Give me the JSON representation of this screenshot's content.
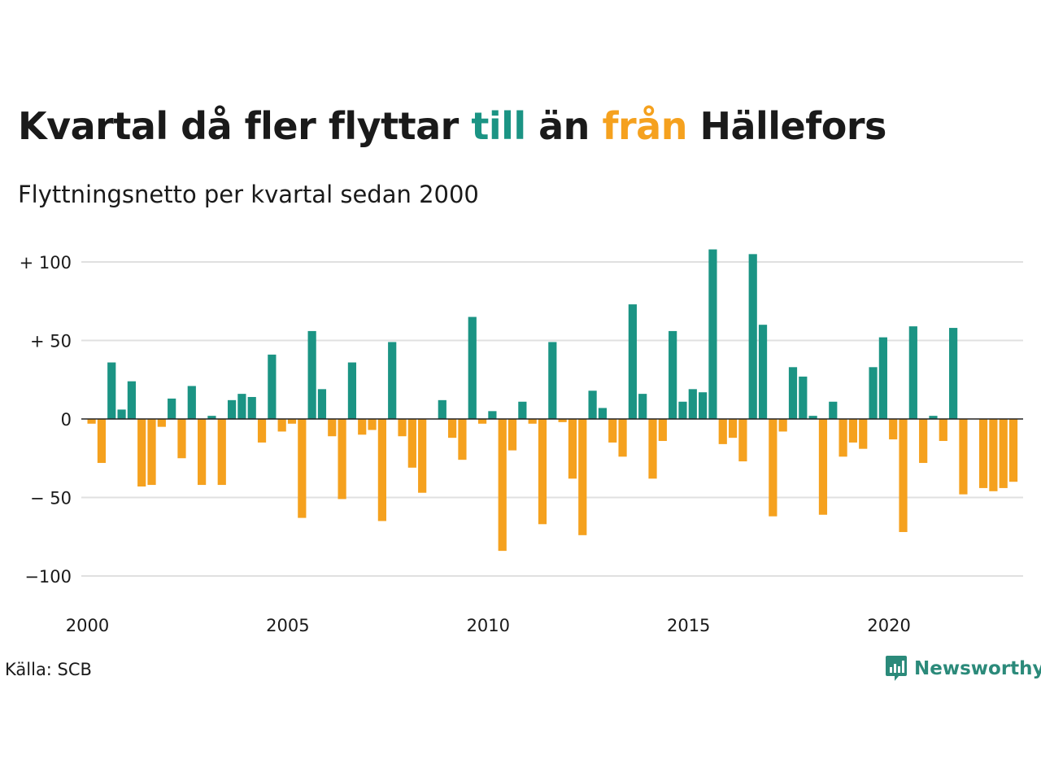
{
  "title": {
    "part1": "Kvartal då fler flyttar ",
    "till": "till",
    "part2": " än ",
    "fran": "från",
    "part3": " Hällefors"
  },
  "subtitle": "Flyttningsnetto per kvartal sedan 2000",
  "source": "Källa: SCB",
  "brand": "Newsworthy",
  "colors": {
    "positive": "#1b9484",
    "negative": "#f5a11e",
    "grid": "#e0e0e0",
    "zero": "#222222",
    "brand": "#2b8a7a"
  },
  "chart_data": {
    "type": "bar",
    "start_year": 2000,
    "x_ticks": [
      "2000",
      "2005",
      "2010",
      "2015",
      "2020"
    ],
    "y_ticks": [
      {
        "value": 100,
        "label": "+ 100"
      },
      {
        "value": 50,
        "label": "+  50"
      },
      {
        "value": 0,
        "label": "0"
      },
      {
        "value": -50,
        "label": "− 50"
      },
      {
        "value": -100,
        "label": "−100"
      }
    ],
    "ylim": [
      -110,
      110
    ],
    "values": [
      -3,
      -28,
      36,
      6,
      24,
      -43,
      -42,
      -5,
      13,
      -25,
      21,
      -42,
      2,
      -42,
      12,
      16,
      14,
      -15,
      41,
      -8,
      -3,
      -63,
      56,
      19,
      -11,
      -51,
      36,
      -10,
      -7,
      -65,
      49,
      -11,
      -31,
      -47,
      0,
      12,
      -12,
      -26,
      65,
      -3,
      5,
      -84,
      -20,
      11,
      -3,
      -67,
      49,
      -2,
      -38,
      -74,
      18,
      7,
      -15,
      -24,
      73,
      16,
      -38,
      -14,
      56,
      11,
      19,
      17,
      108,
      -16,
      -12,
      -27,
      105,
      60,
      -62,
      -8,
      33,
      27,
      2,
      -61,
      11,
      -24,
      -15,
      -19,
      33,
      52,
      -13,
      -72,
      59,
      -28,
      2,
      -14,
      58,
      -48,
      0,
      -44,
      -46,
      -44,
      -40
    ],
    "grid": true,
    "legend": "none"
  }
}
